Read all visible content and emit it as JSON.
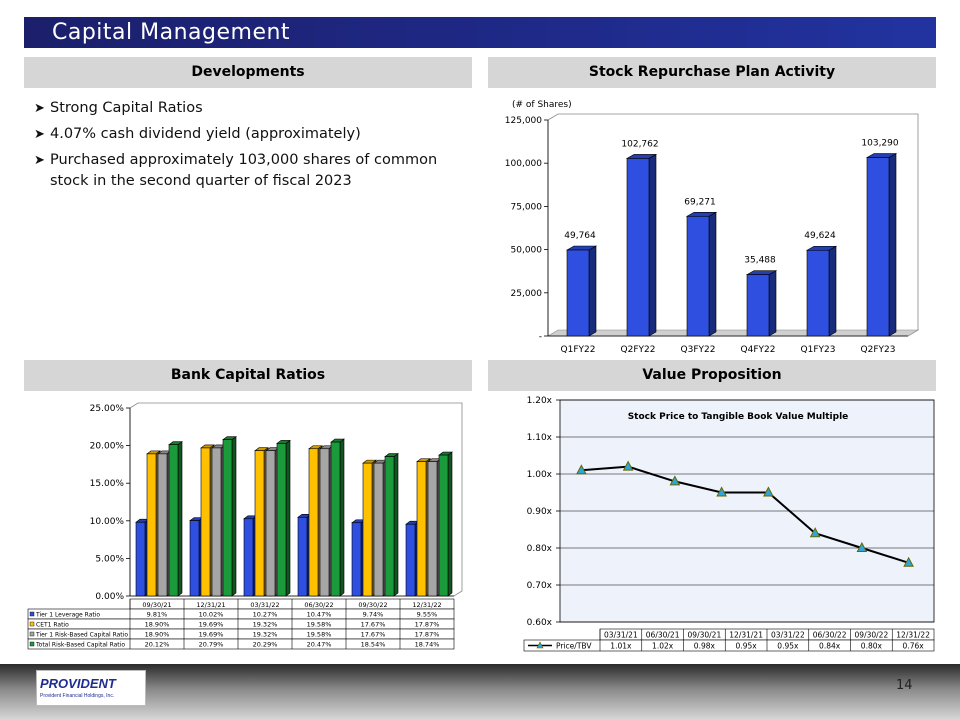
{
  "title": "Capital Management",
  "page_number": "14",
  "logo": {
    "name": "PROVIDENT",
    "subtitle": "Provident Financial Holdings, Inc."
  },
  "developments": {
    "header": "Developments",
    "bullets": [
      "Strong Capital Ratios",
      "4.07% cash dividend yield (approximately)",
      "Purchased approximately 103,000 shares of common stock in the second quarter of fiscal 2023"
    ]
  },
  "repurchase": {
    "header": "Stock Repurchase Plan Activity"
  },
  "capital": {
    "header": "Bank Capital Ratios"
  },
  "value": {
    "header": "Value Proposition"
  },
  "chart_data": [
    {
      "type": "bar",
      "title": "Stock Repurchase Plan Activity",
      "ylabel": "(# of Shares)",
      "categories": [
        "Q1FY22",
        "Q2FY22",
        "Q3FY22",
        "Q4FY22",
        "Q1FY23",
        "Q2FY23"
      ],
      "values": [
        49764,
        102762,
        69271,
        35488,
        49624,
        103290
      ],
      "value_labels": [
        "49,764",
        "102,762",
        "69,271",
        "35,488",
        "49,624",
        "103,290"
      ],
      "ylim": [
        0,
        125000
      ],
      "yticks": [
        0,
        25000,
        50000,
        75000,
        100000,
        125000
      ],
      "ytick_labels": [
        "-",
        "25,000",
        "50,000",
        "75,000",
        "100,000",
        "125,000"
      ],
      "color": "#2e4fe0"
    },
    {
      "type": "bar",
      "title": "Bank Capital Ratios",
      "categories": [
        "09/30/21",
        "12/31/21",
        "03/31/22",
        "06/30/22",
        "09/30/22",
        "12/31/22"
      ],
      "ylim": [
        0,
        25
      ],
      "yticks": [
        0,
        5,
        10,
        15,
        20,
        25
      ],
      "ytick_labels": [
        "0.00%",
        "5.00%",
        "10.00%",
        "15.00%",
        "20.00%",
        "25.00%"
      ],
      "series": [
        {
          "name": "Tier 1 Leverage Ratio",
          "color": "#2e4fe0",
          "values": [
            9.81,
            10.02,
            10.27,
            10.47,
            9.74,
            9.55
          ],
          "labels": [
            "9.81%",
            "10.02%",
            "10.27%",
            "10.47%",
            "9.74%",
            "9.55%"
          ]
        },
        {
          "name": "CET1 Ratio",
          "color": "#ffc000",
          "values": [
            18.9,
            19.69,
            19.32,
            19.58,
            17.67,
            17.87
          ],
          "labels": [
            "18.90%",
            "19.69%",
            "19.32%",
            "19.58%",
            "17.67%",
            "17.87%"
          ]
        },
        {
          "name": "Tier 1 Risk-Based Capital Ratio",
          "color": "#a6a6a6",
          "values": [
            18.9,
            19.69,
            19.32,
            19.58,
            17.67,
            17.87
          ],
          "labels": [
            "18.90%",
            "19.69%",
            "19.32%",
            "19.58%",
            "17.67%",
            "17.87%"
          ]
        },
        {
          "name": "Total Risk-Based Capital Ratio",
          "color": "#1b9a3b",
          "values": [
            20.12,
            20.79,
            20.29,
            20.47,
            18.54,
            18.74
          ],
          "labels": [
            "20.12%",
            "20.79%",
            "20.29%",
            "20.47%",
            "18.54%",
            "18.74%"
          ]
        }
      ]
    },
    {
      "type": "line",
      "title": "Stock Price to Tangible Book Value Multiple",
      "categories": [
        "03/31/21",
        "06/30/21",
        "09/30/21",
        "12/31/21",
        "03/31/22",
        "06/30/22",
        "09/30/22",
        "12/31/22"
      ],
      "series": [
        {
          "name": "Price/TBV",
          "values": [
            1.01,
            1.02,
            0.98,
            0.95,
            0.95,
            0.84,
            0.8,
            0.76
          ],
          "labels": [
            "1.01x",
            "1.02x",
            "0.98x",
            "0.95x",
            "0.95x",
            "0.84x",
            "0.80x",
            "0.76x"
          ]
        }
      ],
      "ylim": [
        0.6,
        1.2
      ],
      "yticks": [
        0.6,
        0.7,
        0.8,
        0.9,
        1.0,
        1.1,
        1.2
      ],
      "ytick_labels": [
        "0.60x",
        "0.70x",
        "0.80x",
        "0.90x",
        "1.00x",
        "1.10x",
        "1.20x"
      ]
    }
  ]
}
